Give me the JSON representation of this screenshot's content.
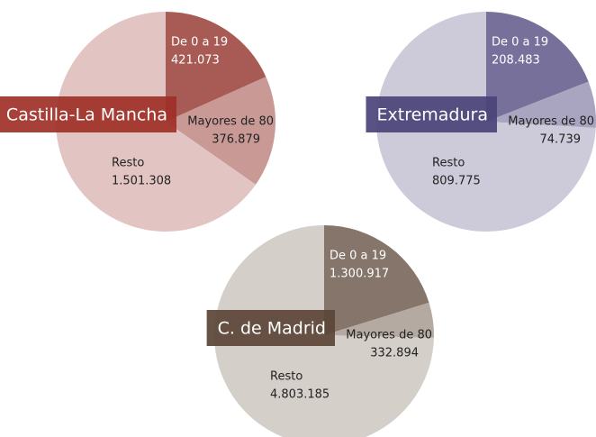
{
  "chart_data": [
    {
      "type": "pie",
      "title": "Castilla-La Mancha",
      "categories": [
        "De 0 a 19",
        "Mayores de 80",
        "Resto"
      ],
      "values": [
        421073,
        376879,
        1501308
      ],
      "value_labels": [
        "421.073",
        "376.879",
        "1.501.308"
      ],
      "colors": [
        "#a85a55",
        "#c99a95",
        "#e2c5c3"
      ],
      "title_box_color": "#9e3028"
    },
    {
      "type": "pie",
      "title": "Extremadura",
      "categories": [
        "De 0 a 19",
        "Mayores de 80",
        "Resto"
      ],
      "values": [
        208483,
        74739,
        809775
      ],
      "value_labels": [
        "208.483",
        "74.739",
        "809.775"
      ],
      "colors": [
        "#76709a",
        "#a9a5c0",
        "#cdcbda"
      ],
      "title_box_color": "#4b437a"
    },
    {
      "type": "pie",
      "title": "C. de Madrid",
      "categories": [
        "De 0 a 19",
        "Mayores de 80",
        "Resto"
      ],
      "values": [
        1300917,
        332894,
        4803185
      ],
      "value_labels": [
        "1.300.917",
        "332.894",
        "4.803.185"
      ],
      "colors": [
        "#85756a",
        "#b5aaa2",
        "#d5cfca"
      ],
      "title_box_color": "#5b4537"
    }
  ]
}
